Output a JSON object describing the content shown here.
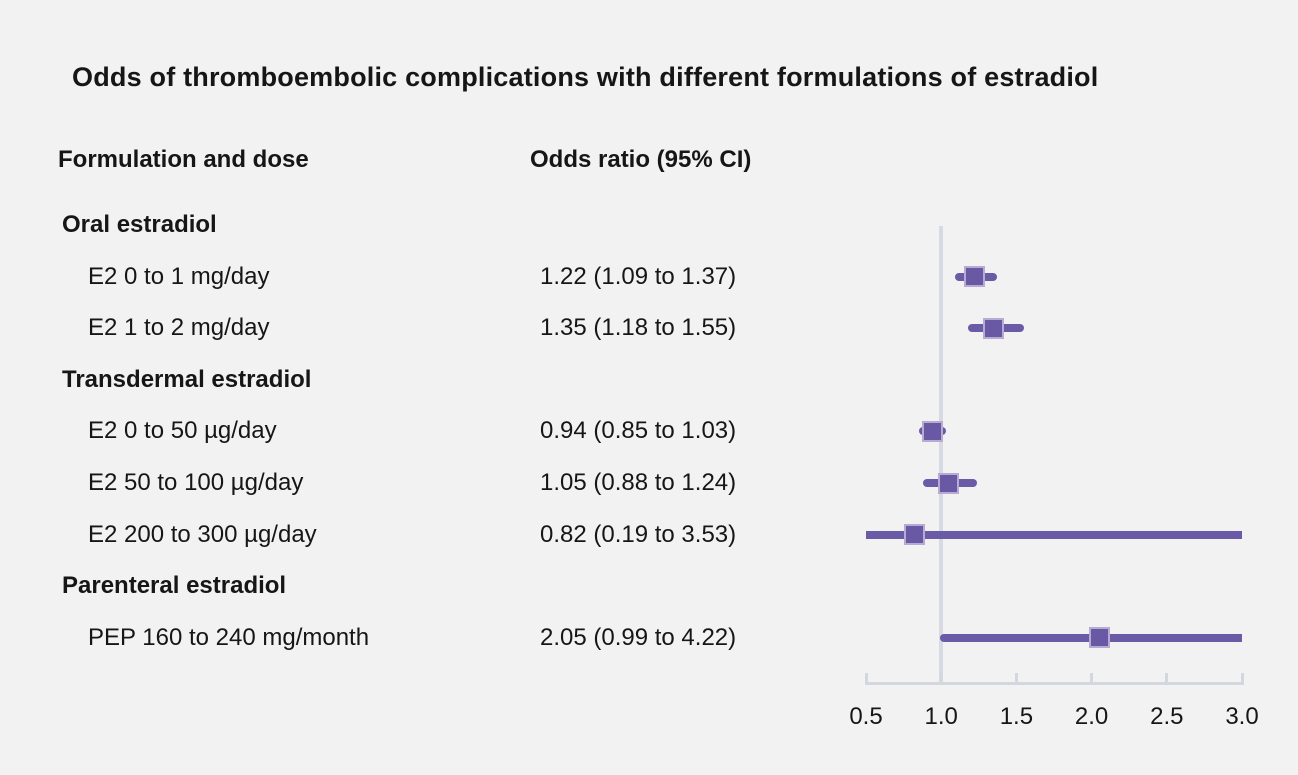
{
  "title": "Odds of thromboembolic complications with different formulations of estradiol",
  "columns": {
    "formulation": "Formulation and dose",
    "odds_ratio": "Odds ratio (95% CI)"
  },
  "colors": {
    "background": "#f2f2f2",
    "text": "#161616",
    "marker_fill": "#6959a4",
    "marker_border": "#b7abd4",
    "ci_line": "#6b5aa6",
    "axis_line": "#d2d7e0",
    "reference_line": "#d6dae2"
  },
  "chart_data": {
    "type": "forest",
    "title": "Odds of thromboembolic complications with different formulations of estradiol",
    "x_ticks": [
      "0.5",
      "1.0",
      "1.5",
      "2.0",
      "2.5",
      "3.0"
    ],
    "x_tick_values": [
      0.5,
      1.0,
      1.5,
      2.0,
      2.5,
      3.0
    ],
    "xlim": [
      0.5,
      3.0
    ],
    "reference_value": 1.0,
    "grid": false,
    "groups": [
      {
        "label": "Oral estradiol",
        "items": [
          {
            "label": "E2 0 to 1 mg/day",
            "or_text": "1.22 (1.09 to 1.37)",
            "or": 1.22,
            "ci_low": 1.09,
            "ci_high": 1.37
          },
          {
            "label": "E2 1 to 2 mg/day",
            "or_text": "1.35 (1.18 to 1.55)",
            "or": 1.35,
            "ci_low": 1.18,
            "ci_high": 1.55
          }
        ]
      },
      {
        "label": "Transdermal estradiol",
        "items": [
          {
            "label": "E2 0 to 50 µg/day",
            "or_text": "0.94 (0.85 to 1.03)",
            "or": 0.94,
            "ci_low": 0.85,
            "ci_high": 1.03
          },
          {
            "label": "E2 50 to 100 µg/day",
            "or_text": "1.05 (0.88 to 1.24)",
            "or": 1.05,
            "ci_low": 0.88,
            "ci_high": 1.24
          },
          {
            "label": "E2 200 to 300 µg/day",
            "or_text": "0.82 (0.19 to 3.53)",
            "or": 0.82,
            "ci_low": 0.19,
            "ci_high": 3.53
          }
        ]
      },
      {
        "label": "Parenteral estradiol",
        "items": [
          {
            "label": "PEP 160 to 240 mg/month",
            "or_text": "2.05 (0.99 to 4.22)",
            "or": 2.05,
            "ci_low": 0.99,
            "ci_high": 4.22
          }
        ]
      }
    ]
  }
}
